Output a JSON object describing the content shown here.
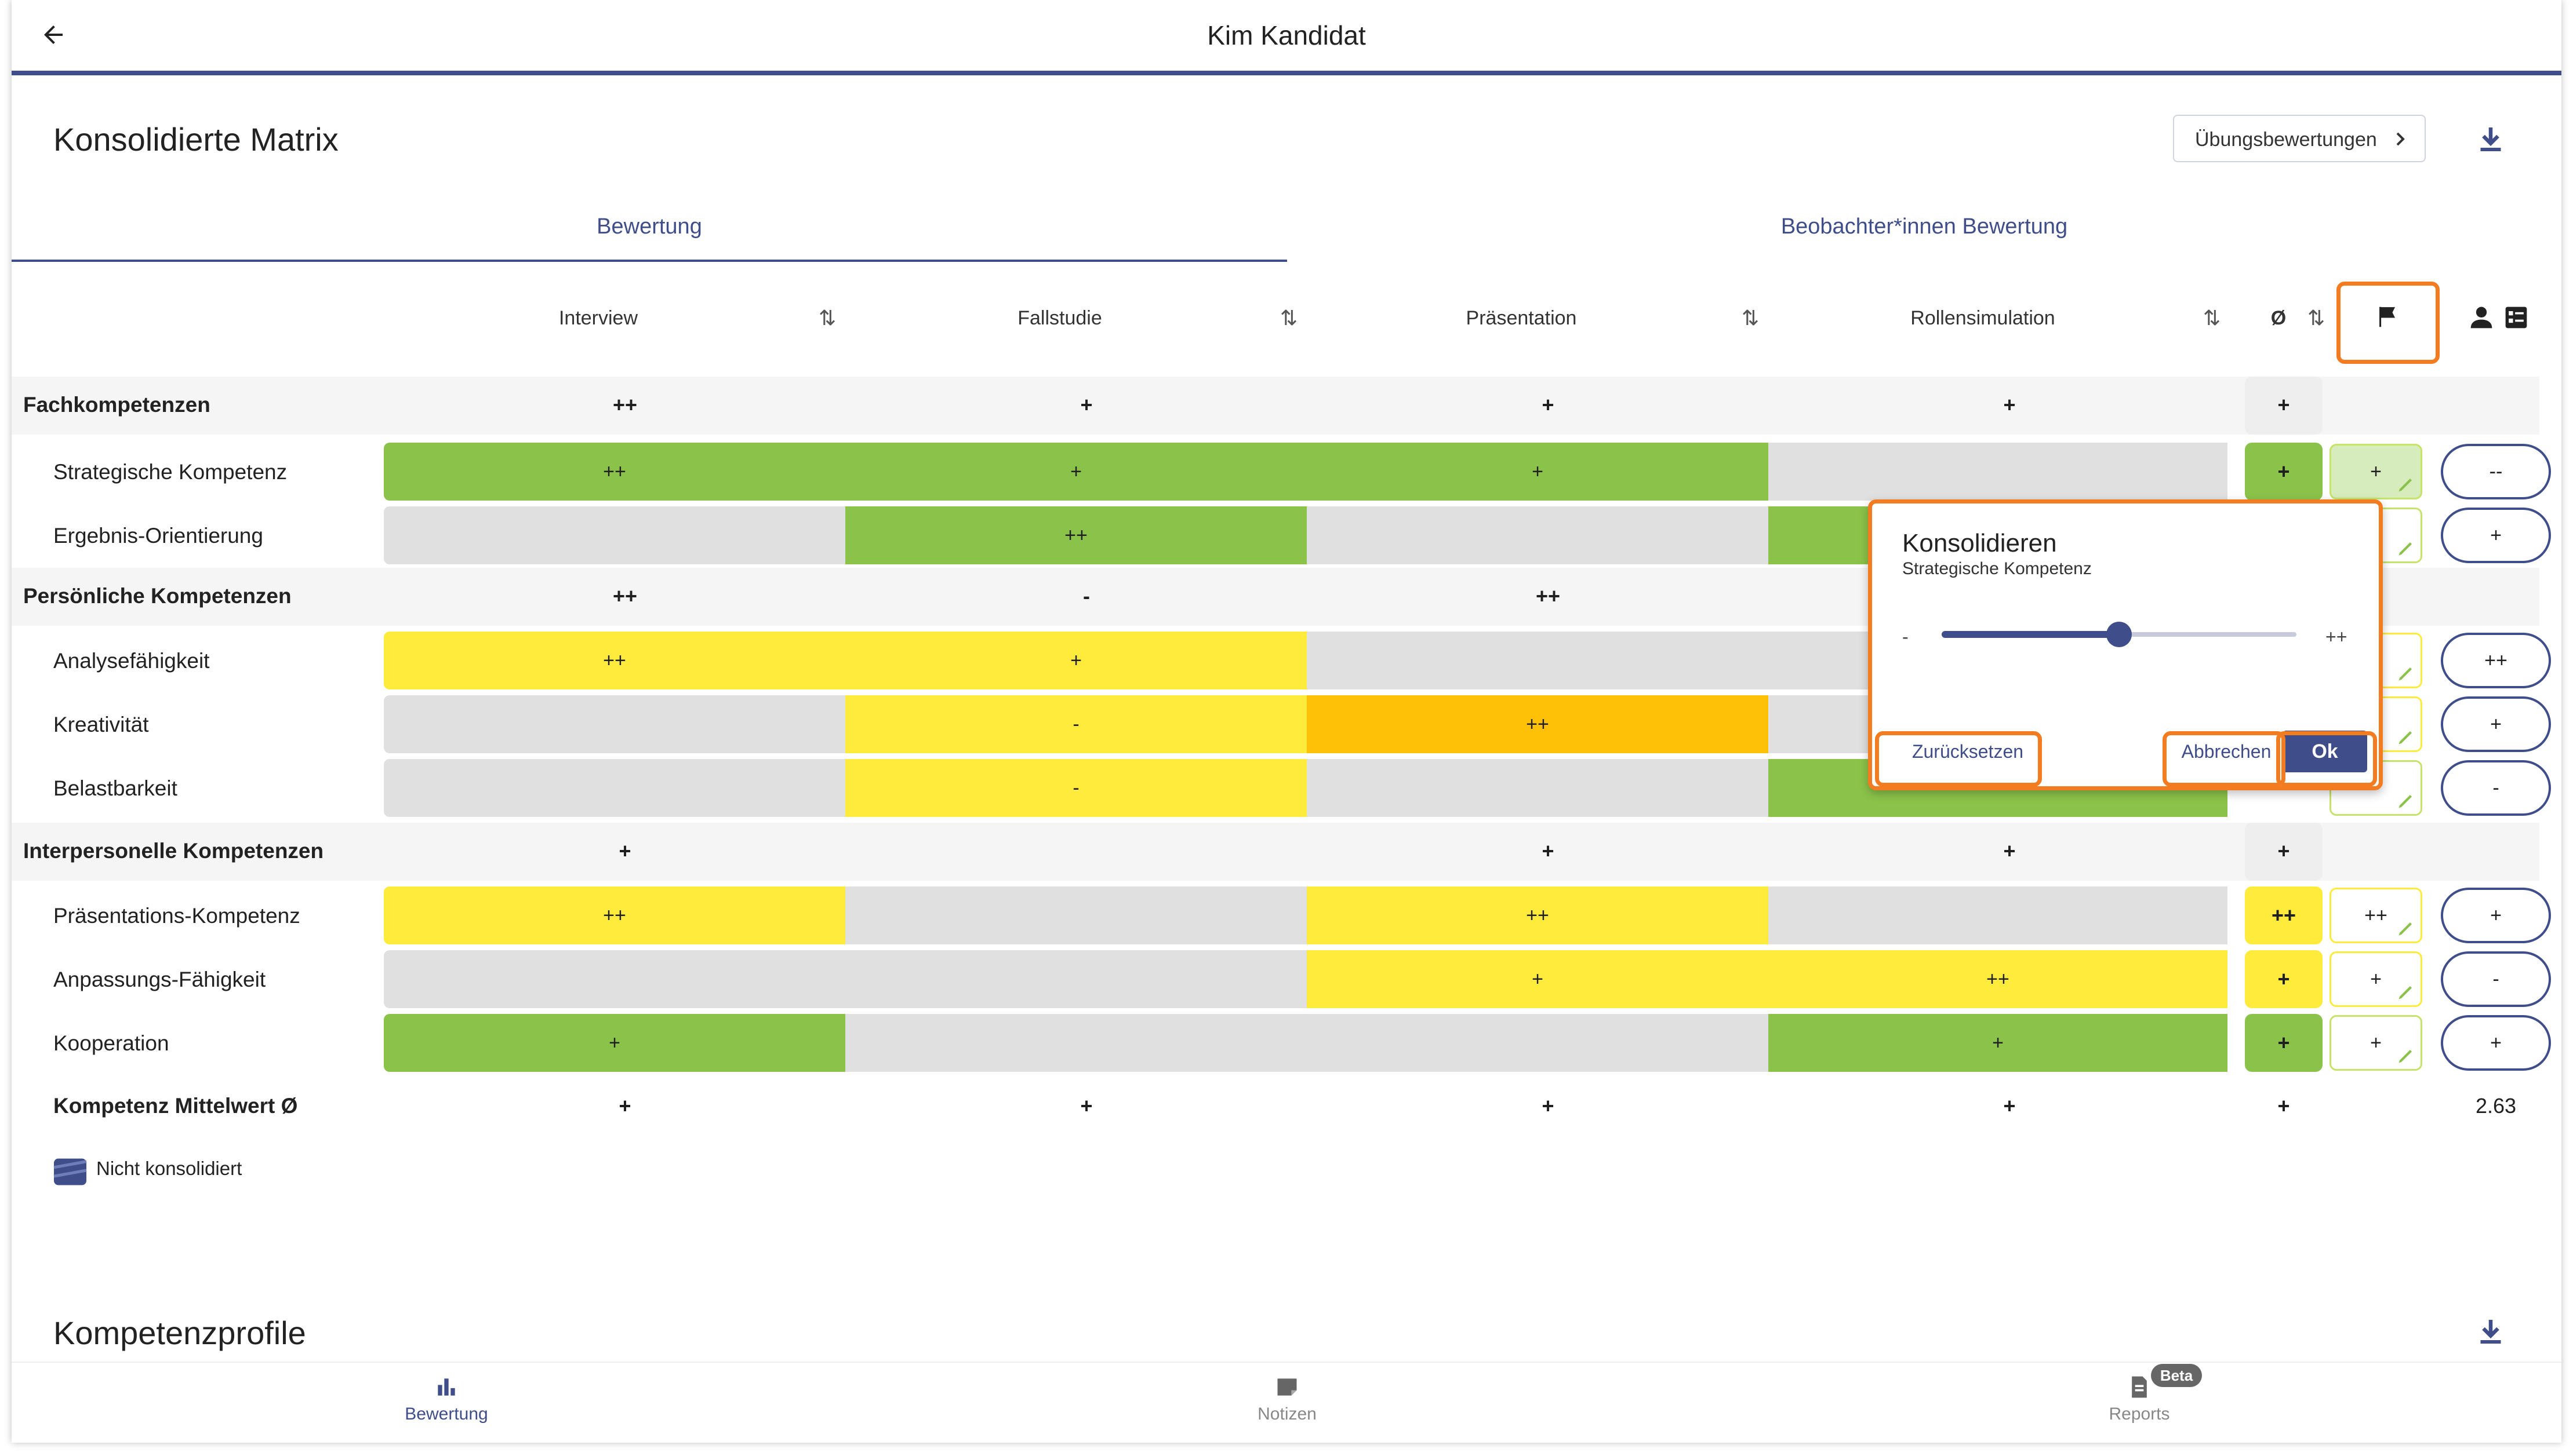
{
  "appbar": {
    "title": "Kim Kandidat"
  },
  "section1": {
    "title": "Konsolidierte Matrix",
    "button_label": "Übungsbewertungen"
  },
  "tabs": [
    {
      "label": "Bewertung"
    },
    {
      "label": "Beobachter*innen Bewertung"
    }
  ],
  "columns": [
    "Interview",
    "Fallstudie",
    "Präsentation",
    "Rollensimulation"
  ],
  "avg_symbol": "Ø",
  "categories": [
    {
      "label": "Fachkompetenzen",
      "values": [
        "++",
        "+",
        "+",
        "+"
      ],
      "avg": "+"
    },
    {
      "label": "Persönliche Kompetenzen",
      "values": [
        "++",
        "-",
        "++",
        ""
      ],
      "avg": ""
    },
    {
      "label": "Interpersonelle Kompetenzen",
      "values": [
        "+",
        "",
        "+",
        "+"
      ],
      "avg": "+"
    }
  ],
  "rows": [
    {
      "label": "Strategische Kompetenz",
      "values": [
        "++",
        "+",
        "+",
        ""
      ],
      "colors": [
        "g",
        "g",
        "g",
        "e"
      ],
      "avg": "+",
      "consolidated": "+",
      "observer": "--"
    },
    {
      "label": "Ergebnis-Orientierung",
      "values": [
        "",
        "++",
        "",
        ""
      ],
      "colors": [
        "e",
        "g",
        "e",
        "g"
      ],
      "avg": "",
      "consolidated": "+",
      "observer": "+"
    },
    {
      "label": "Analysefähigkeit",
      "values": [
        "++",
        "+",
        "",
        ""
      ],
      "colors": [
        "y",
        "y",
        "e",
        "e"
      ],
      "avg": "",
      "consolidated": "+",
      "observer": "++"
    },
    {
      "label": "Kreativität",
      "values": [
        "",
        "-",
        "++",
        ""
      ],
      "colors": [
        "e",
        "y",
        "o",
        "e"
      ],
      "avg": "",
      "consolidated": "+",
      "observer": "+"
    },
    {
      "label": "Belastbarkeit",
      "values": [
        "",
        "-",
        "",
        ""
      ],
      "colors": [
        "e",
        "y",
        "e",
        "g"
      ],
      "avg": "",
      "consolidated": "-",
      "observer": "-"
    },
    {
      "label": "Präsentations-Kompetenz",
      "values": [
        "++",
        "",
        "++",
        ""
      ],
      "colors": [
        "y",
        "e",
        "y",
        "e"
      ],
      "avg": "++",
      "consolidated": "++",
      "observer": "+"
    },
    {
      "label": "Anpassungs-Fähigkeit",
      "values": [
        "",
        "",
        "+",
        "++"
      ],
      "colors": [
        "e",
        "e",
        "y",
        "y"
      ],
      "avg": "+",
      "consolidated": "+",
      "observer": "-"
    },
    {
      "label": "Kooperation",
      "values": [
        "+",
        "",
        "",
        "+"
      ],
      "colors": [
        "g",
        "e",
        "e",
        "g"
      ],
      "avg": "+",
      "consolidated": "+",
      "observer": "+"
    }
  ],
  "summary": {
    "label": "Kompetenz Mittelwert Ø",
    "values": [
      "+",
      "+",
      "+",
      "+"
    ],
    "avg": "+",
    "score": "2.63"
  },
  "legend": {
    "label": "Nicht konsolidiert"
  },
  "dialog": {
    "title": "Konsolidieren",
    "subtitle": "Strategische Kompetenz",
    "slider_min_label": "-",
    "slider_max_label": "++",
    "slider_value_fraction": 0.5,
    "reset_label": "Zurücksetzen",
    "cancel_label": "Abbrechen",
    "ok_label": "Ok"
  },
  "section2": {
    "title": "Kompetenzprofile"
  },
  "bottom_nav": [
    {
      "label": "Bewertung",
      "icon": "bar-chart-icon",
      "active": true
    },
    {
      "label": "Notizen",
      "icon": "note-icon",
      "active": false
    },
    {
      "label": "Reports",
      "icon": "report-icon",
      "active": false,
      "badge": "Beta"
    }
  ],
  "colors": {
    "accent": "#3f4d8a",
    "green": "#8bc34a",
    "yellow": "#ffeb3b",
    "amber": "#ffc107",
    "grey": "#e0e0e0",
    "highlight": "#f47c20"
  }
}
